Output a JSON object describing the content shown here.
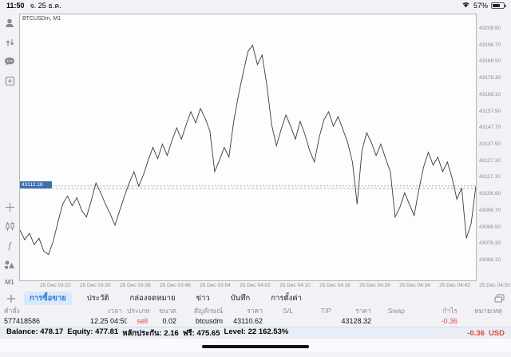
{
  "status_bar": {
    "time": "11:50",
    "date": "จ. 25 ธ.ค.",
    "battery": "57%"
  },
  "sidebar": {
    "icons": [
      "trader-account",
      "deposit-withdraw",
      "chat",
      "new-order",
      "crosshair",
      "indicators",
      "functions",
      "objects"
    ],
    "timeframe": "M1"
  },
  "chart": {
    "title": "BTCUSDm, M1",
    "current_price": "43112.18",
    "position_label": "sell 0.02"
  },
  "chart_data": {
    "type": "line",
    "title": "BTCUSDm, M1",
    "symbol": "BTCUSDm",
    "timeframe": "M1",
    "ylim": [
      43054,
      43218
    ],
    "y_ticks": [
      43208.9,
      43198.7,
      43188.5,
      43178.3,
      43168.1,
      43157.9,
      43147.7,
      43137.5,
      43127.3,
      43117.1,
      43106.9,
      43096.7,
      43086.5,
      43076.3,
      43066.1
    ],
    "x_labels": [
      "25 Dec 03:22",
      "25 Dec 03:30",
      "25 Dec 03:38",
      "25 Dec 03:46",
      "25 Dec 03:54",
      "25 Dec 04:02",
      "25 Dec 04:10",
      "25 Dec 04:18",
      "25 Dec 04:26",
      "25 Dec 04:34",
      "25 Dec 04:42",
      "25 Dec 04:50"
    ],
    "current_price": 43112.18,
    "position_price": 43110.62,
    "values": [
      43085,
      43079,
      43083,
      43076,
      43080,
      43072,
      43070,
      43078,
      43090,
      43101,
      43106,
      43100,
      43105,
      43097,
      43093,
      43103,
      43114,
      43108,
      43101,
      43095,
      43088,
      43097,
      43106,
      43114,
      43121,
      43112,
      43119,
      43128,
      43136,
      43129,
      43138,
      43131,
      43140,
      43148,
      43141,
      43150,
      43158,
      43151,
      43160,
      43154,
      43146,
      43121,
      43128,
      43136,
      43130,
      43152,
      43168,
      43182,
      43195,
      43199,
      43187,
      43193,
      43174,
      43150,
      43137,
      43147,
      43156,
      43149,
      43141,
      43152,
      43144,
      43134,
      43127,
      43142,
      43153,
      43158,
      43149,
      43155,
      43147,
      43139,
      43127,
      43101,
      43134,
      43145,
      43139,
      43131,
      43138,
      43129,
      43121,
      43093,
      43099,
      43108,
      43101,
      43094,
      43110,
      43124,
      43133,
      43125,
      43130,
      43121,
      43127,
      43117,
      43104,
      43111,
      43080,
      43089,
      43112.18
    ]
  },
  "tabs": {
    "items": [
      {
        "label": "การซื้อขาย",
        "selected": true
      },
      {
        "label": "ประวัติ",
        "selected": false
      },
      {
        "label": "กล่องจดหมาย",
        "selected": false
      },
      {
        "label": "ข่าว",
        "selected": false
      },
      {
        "label": "บันทึก",
        "selected": false
      },
      {
        "label": "การตั้งค่า",
        "selected": false
      }
    ]
  },
  "table": {
    "headers": [
      "คำสั่ง",
      "เวลา",
      "ประเภท",
      "ขนาด",
      "สัญลักษณ์",
      "ราคา",
      "S/L",
      "T/P",
      "ราคา",
      "Swap",
      "กำไร",
      "หมายเหตุ"
    ],
    "row": [
      "577418586",
      "12.25 04:50",
      "sell",
      "0.02",
      "btcusdm",
      "43110.62",
      "",
      "",
      "43128.32",
      "",
      "-0.36",
      ""
    ]
  },
  "balance": {
    "pairs": [
      {
        "label": "Balance:",
        "value": "478.17"
      },
      {
        "label": "Equity:",
        "value": "477.81"
      },
      {
        "label": "หลักประกัน:",
        "value": "2.16"
      },
      {
        "label": "ฟรี:",
        "value": "475.65"
      },
      {
        "label": "Level:",
        "value": "22 162.53%"
      }
    ],
    "profit": "-0.36",
    "currency": "USD"
  }
}
